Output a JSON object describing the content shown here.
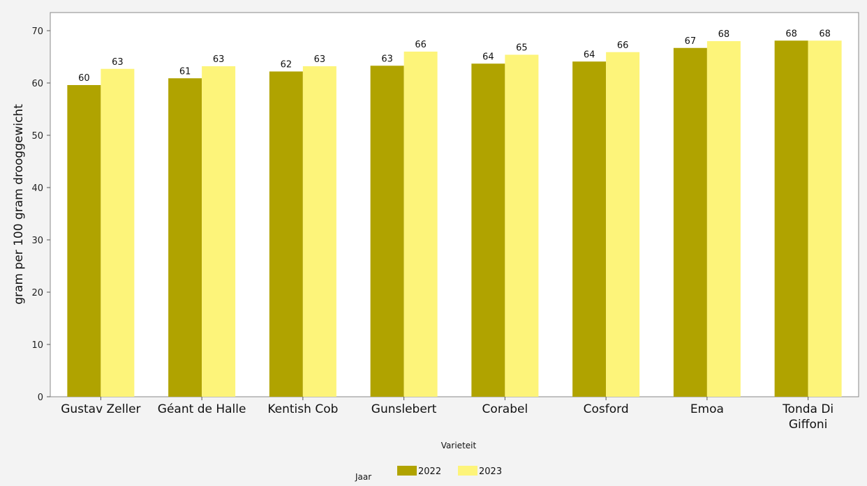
{
  "chart_data": {
    "type": "bar",
    "categories": [
      [
        "Gustav Zeller"
      ],
      [
        "Géant de Halle"
      ],
      [
        "Kentish Cob"
      ],
      [
        "Gunslebert"
      ],
      [
        "Corabel"
      ],
      [
        "Cosford"
      ],
      [
        "Emoa"
      ],
      [
        "Tonda Di",
        "Giffoni"
      ]
    ],
    "series": [
      {
        "name": "2022",
        "color": "#b0a300",
        "values": [
          59.6,
          60.9,
          62.2,
          63.3,
          63.7,
          64.1,
          66.7,
          68.1
        ],
        "labels": [
          "60",
          "61",
          "62",
          "63",
          "64",
          "64",
          "67",
          "68"
        ]
      },
      {
        "name": "2023",
        "color": "#fdf47a",
        "values": [
          62.7,
          63.2,
          63.2,
          66.0,
          65.4,
          65.9,
          68.0,
          68.1
        ],
        "labels": [
          "63",
          "63",
          "63",
          "66",
          "65",
          "66",
          "68",
          "68"
        ]
      }
    ],
    "xlabel": "Varieteit",
    "ylabel": "gram per 100 gram drooggewicht",
    "ylim": [
      0,
      70
    ],
    "yticks": [
      0,
      10,
      20,
      30,
      40,
      50,
      60,
      70
    ],
    "grid": false,
    "legend": {
      "title": "Jaar",
      "placement": "bottom-center"
    }
  }
}
